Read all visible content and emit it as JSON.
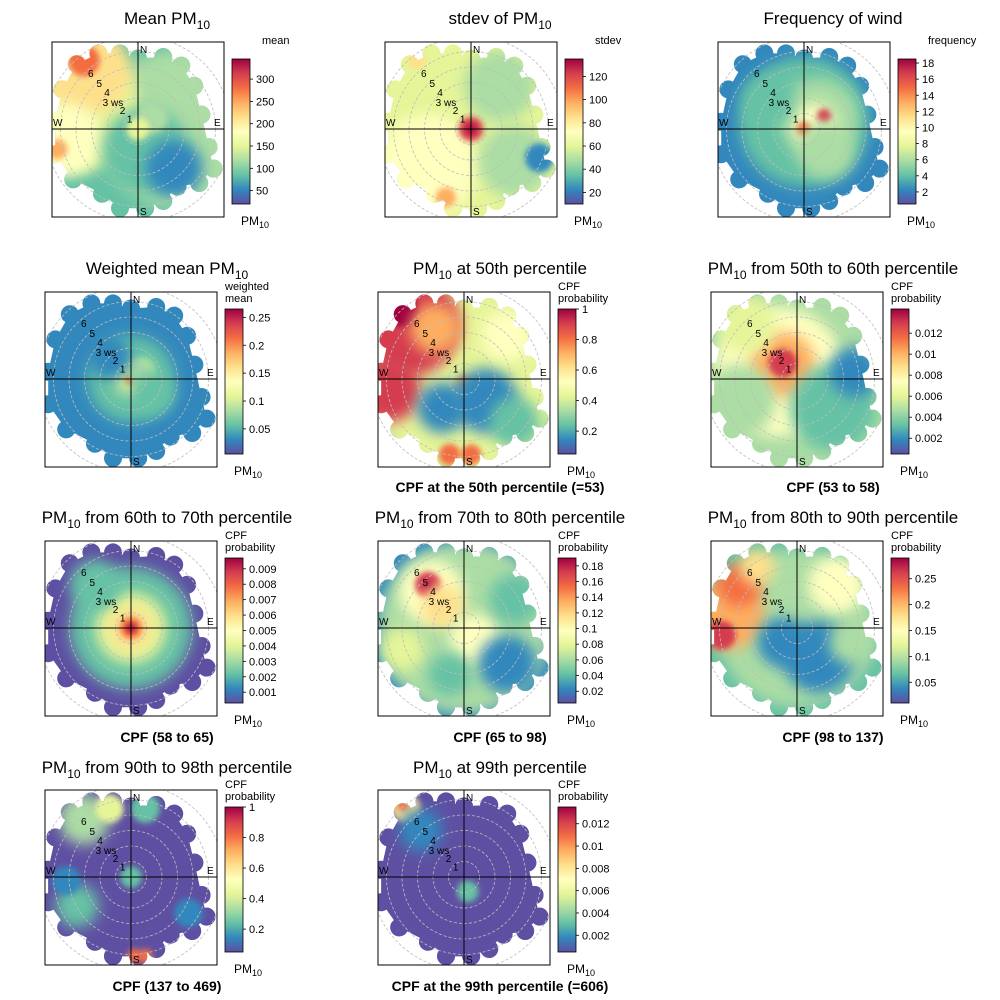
{
  "figure": {
    "panels": [
      {
        "title": "Mean PM",
        "title_sub": "10",
        "title_post": "",
        "caption": "",
        "legend_title": [
          "mean"
        ],
        "legend_ticks": [
          "50",
          "100",
          "150",
          "200",
          "250",
          "300"
        ],
        "legend_range": [
          20,
          345
        ],
        "legend_unit": "PM",
        "legend_unit_sub": "10",
        "pattern": "mean"
      },
      {
        "title": "stdev of PM",
        "title_sub": "10",
        "title_post": "",
        "caption": "",
        "legend_title": [
          "stdev"
        ],
        "legend_ticks": [
          "20",
          "40",
          "60",
          "80",
          "100",
          "120"
        ],
        "legend_range": [
          10,
          135
        ],
        "legend_unit": "PM",
        "legend_unit_sub": "10",
        "pattern": "stdev"
      },
      {
        "title": "Frequency of wind",
        "title_sub": "",
        "title_post": "",
        "caption": "",
        "legend_title": [
          "frequency"
        ],
        "legend_ticks": [
          "2",
          "4",
          "6",
          "8",
          "10",
          "12",
          "14",
          "16",
          "18"
        ],
        "legend_range": [
          0.5,
          18.5
        ],
        "legend_unit": "PM",
        "legend_unit_sub": "10",
        "pattern": "freq"
      },
      {
        "title": "Weighted mean PM",
        "title_sub": "10",
        "title_post": "",
        "caption": "",
        "legend_title": [
          "weighted",
          "mean"
        ],
        "legend_ticks": [
          "0.05",
          "0.1",
          "0.15",
          "0.2",
          "0.25"
        ],
        "legend_range": [
          0.005,
          0.265
        ],
        "legend_unit": "PM",
        "legend_unit_sub": "10",
        "pattern": "weighted"
      },
      {
        "title": "PM",
        "title_sub": "10",
        "title_post": " at 50th percentile",
        "caption": "CPF at the 50th percentile (=53)",
        "legend_title": [
          "CPF",
          "probability"
        ],
        "legend_ticks": [
          "0.2",
          "0.4",
          "0.6",
          "0.8",
          "1"
        ],
        "legend_range": [
          0.05,
          1.0
        ],
        "legend_unit": "PM",
        "legend_unit_sub": "10",
        "pattern": "cpf50"
      },
      {
        "title": "PM",
        "title_sub": "10",
        "title_post": "  from 50th to 60th percentile",
        "caption": "CPF (53 to 58)",
        "legend_title": [
          "CPF",
          "probability"
        ],
        "legend_ticks": [
          "0.002",
          "0.004",
          "0.006",
          "0.008",
          "0.01",
          "0.012"
        ],
        "legend_range": [
          0.0005,
          0.0143
        ],
        "legend_unit": "PM",
        "legend_unit_sub": "10",
        "pattern": "c5060"
      },
      {
        "title": "PM",
        "title_sub": "10",
        "title_post": " from 60th to 70th percentile",
        "caption": "CPF (58 to 65)",
        "legend_title": [
          "CPF",
          "probability"
        ],
        "legend_ticks": [
          "0.001",
          "0.002",
          "0.003",
          "0.004",
          "0.005",
          "0.006",
          "0.007",
          "0.008",
          "0.009"
        ],
        "legend_range": [
          0.0003,
          0.0097
        ],
        "legend_unit": "PM",
        "legend_unit_sub": "10",
        "pattern": "c6070"
      },
      {
        "title": "PM",
        "title_sub": "10",
        "title_post": " from 70th to 80th percentile",
        "caption": "CPF (65 to 98)",
        "legend_title": [
          "CPF",
          "probability"
        ],
        "legend_ticks": [
          "0.02",
          "0.04",
          "0.06",
          "0.08",
          "0.1",
          "0.12",
          "0.14",
          "0.16",
          "0.18"
        ],
        "legend_range": [
          0.005,
          0.19
        ],
        "legend_unit": "PM",
        "legend_unit_sub": "10",
        "pattern": "c7080"
      },
      {
        "title": "PM",
        "title_sub": "10",
        "title_post": " from 80th to 90th percentile",
        "caption": "CPF (98 to 137)",
        "legend_title": [
          "CPF",
          "probability"
        ],
        "legend_ticks": [
          "0.05",
          "0.1",
          "0.15",
          "0.2",
          "0.25"
        ],
        "legend_range": [
          0.01,
          0.29
        ],
        "legend_unit": "PM",
        "legend_unit_sub": "10",
        "pattern": "c8090"
      },
      {
        "title": "PM",
        "title_sub": "10",
        "title_post": " from 90th to 98th percentile",
        "caption": "CPF (137 to 469)",
        "legend_title": [
          "CPF",
          "probability"
        ],
        "legend_ticks": [
          "0.2",
          "0.4",
          "0.6",
          "0.8",
          "1"
        ],
        "legend_range": [
          0.05,
          1.0
        ],
        "legend_unit": "PM",
        "legend_unit_sub": "10",
        "pattern": "c9098"
      },
      {
        "title": "PM",
        "title_sub": "10",
        "title_post": " at 99th percentile",
        "caption": "CPF at the 99th percentile (=606)",
        "legend_title": [
          "CPF",
          "probability"
        ],
        "legend_ticks": [
          "0.002",
          "0.004",
          "0.006",
          "0.008",
          "0.01",
          "0.012"
        ],
        "legend_range": [
          0.0005,
          0.0135
        ],
        "legend_unit": "PM",
        "legend_unit_sub": "10",
        "pattern": "cpf99"
      }
    ],
    "compass": {
      "north": "N",
      "south": "S",
      "east": "E",
      "west": "W"
    },
    "radial_labels": [
      "1",
      "2",
      "3 ws",
      "4",
      "5",
      "6"
    ]
  },
  "chart_data": [
    {
      "type": "heatmap",
      "title": "Mean PM10",
      "legend_title": "mean",
      "scale": [
        20,
        345
      ],
      "legend_ticks": [
        50,
        100,
        150,
        200,
        250,
        300
      ],
      "ws_rings": [
        1,
        2,
        3,
        4,
        5,
        6
      ],
      "radial_label": "ws"
    },
    {
      "type": "heatmap",
      "title": "stdev of PM10",
      "legend_title": "stdev",
      "scale": [
        10,
        135
      ],
      "legend_ticks": [
        20,
        40,
        60,
        80,
        100,
        120
      ],
      "ws_rings": [
        1,
        2,
        3,
        4,
        5,
        6
      ],
      "radial_label": "ws"
    },
    {
      "type": "heatmap",
      "title": "Frequency of wind",
      "legend_title": "frequency",
      "scale": [
        0.5,
        18.5
      ],
      "legend_ticks": [
        2,
        4,
        6,
        8,
        10,
        12,
        14,
        16,
        18
      ],
      "ws_rings": [
        1,
        2,
        3,
        4,
        5,
        6
      ],
      "radial_label": "ws"
    },
    {
      "type": "heatmap",
      "title": "Weighted mean PM10",
      "legend_title": "weighted mean",
      "scale": [
        0.005,
        0.265
      ],
      "legend_ticks": [
        0.05,
        0.1,
        0.15,
        0.2,
        0.25
      ],
      "ws_rings": [
        1,
        2,
        3,
        4,
        5,
        6
      ],
      "radial_label": "ws"
    },
    {
      "type": "heatmap",
      "title": "PM10 at 50th percentile",
      "caption": "CPF at the 50th percentile (=53)",
      "legend_title": "CPF probability",
      "scale": [
        0.05,
        1.0
      ],
      "legend_ticks": [
        0.2,
        0.4,
        0.6,
        0.8,
        1
      ],
      "ws_rings": [
        1,
        2,
        3,
        4,
        5,
        6
      ],
      "radial_label": "ws"
    },
    {
      "type": "heatmap",
      "title": "PM10 from 50th to 60th percentile",
      "caption": "CPF (53 to 58)",
      "legend_title": "CPF probability",
      "scale": [
        0.0005,
        0.0143
      ],
      "legend_ticks": [
        0.002,
        0.004,
        0.006,
        0.008,
        0.01,
        0.012
      ],
      "ws_rings": [
        1,
        2,
        3,
        4,
        5,
        6
      ],
      "radial_label": "ws"
    },
    {
      "type": "heatmap",
      "title": "PM10 from 60th to 70th percentile",
      "caption": "CPF (58 to 65)",
      "legend_title": "CPF probability",
      "scale": [
        0.0003,
        0.0097
      ],
      "legend_ticks": [
        0.001,
        0.002,
        0.003,
        0.004,
        0.005,
        0.006,
        0.007,
        0.008,
        0.009
      ],
      "ws_rings": [
        1,
        2,
        3,
        4,
        5,
        6
      ],
      "radial_label": "ws"
    },
    {
      "type": "heatmap",
      "title": "PM10 from 70th to 80th percentile",
      "caption": "CPF (65 to 98)",
      "legend_title": "CPF probability",
      "scale": [
        0.005,
        0.19
      ],
      "legend_ticks": [
        0.02,
        0.04,
        0.06,
        0.08,
        0.1,
        0.12,
        0.14,
        0.16,
        0.18
      ],
      "ws_rings": [
        1,
        2,
        3,
        4,
        5,
        6
      ],
      "radial_label": "ws"
    },
    {
      "type": "heatmap",
      "title": "PM10 from 80th to 90th percentile",
      "caption": "CPF (98 to 137)",
      "legend_title": "CPF probability",
      "scale": [
        0.01,
        0.29
      ],
      "legend_ticks": [
        0.05,
        0.1,
        0.15,
        0.2,
        0.25
      ],
      "ws_rings": [
        1,
        2,
        3,
        4,
        5,
        6
      ],
      "radial_label": "ws"
    },
    {
      "type": "heatmap",
      "title": "PM10 from 90th to 98th percentile",
      "caption": "CPF (137 to 469)",
      "legend_title": "CPF probability",
      "scale": [
        0.05,
        1.0
      ],
      "legend_ticks": [
        0.2,
        0.4,
        0.6,
        0.8,
        1
      ],
      "ws_rings": [
        1,
        2,
        3,
        4,
        5,
        6
      ],
      "radial_label": "ws"
    },
    {
      "type": "heatmap",
      "title": "PM10 at 99th percentile",
      "caption": "CPF at the 99th percentile (=606)",
      "legend_title": "CPF probability",
      "scale": [
        0.0005,
        0.0135
      ],
      "legend_ticks": [
        0.002,
        0.004,
        0.006,
        0.008,
        0.01,
        0.012
      ],
      "ws_rings": [
        1,
        2,
        3,
        4,
        5,
        6
      ],
      "radial_label": "ws"
    }
  ]
}
